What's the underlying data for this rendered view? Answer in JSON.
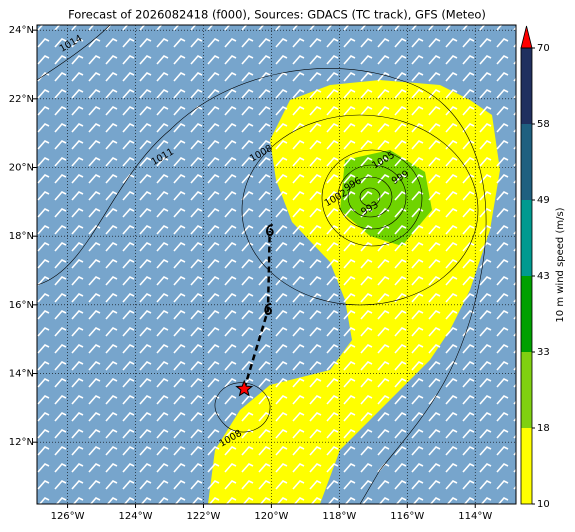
{
  "map": {
    "title": "Forecast of 2026082418 (f000), Sources: GDACS (TC track), GFS (Meteo)",
    "xlim": [
      -126.9,
      -112.8
    ],
    "ylim": [
      10.2,
      24.15
    ],
    "grid": true,
    "lon_ticks": [
      {
        "value": -126,
        "label": "126°W"
      },
      {
        "value": -124,
        "label": "124°W"
      },
      {
        "value": -122,
        "label": "122°W"
      },
      {
        "value": -120,
        "label": "120°W"
      },
      {
        "value": -118,
        "label": "118°W"
      },
      {
        "value": -116,
        "label": "116°W"
      },
      {
        "value": -114,
        "label": "114°W"
      }
    ],
    "lat_ticks": [
      {
        "value": 12,
        "label": "12°N"
      },
      {
        "value": 14,
        "label": "14°N"
      },
      {
        "value": 16,
        "label": "16°N"
      },
      {
        "value": 18,
        "label": "18°N"
      },
      {
        "value": 20,
        "label": "20°N"
      },
      {
        "value": 22,
        "label": "22°N"
      },
      {
        "value": 24,
        "label": "24°N"
      }
    ],
    "contour_labels": [
      {
        "level": 1014,
        "lon": -125.9,
        "lat": 23.6
      },
      {
        "level": 1011,
        "lon": -123.2,
        "lat": 20.3
      },
      {
        "level": 1008,
        "lon": -120.3,
        "lat": 20.4
      },
      {
        "level": 1005,
        "lon": -116.7,
        "lat": 20.2
      },
      {
        "level": 1002,
        "lon": -118.1,
        "lat": 19.1
      },
      {
        "level": 999,
        "lon": -116.2,
        "lat": 19.7
      },
      {
        "level": 996,
        "lon": -117.6,
        "lat": 19.5
      },
      {
        "level": 993,
        "lon": -117.1,
        "lat": 18.8
      },
      {
        "level": 1008,
        "lon": -121.2,
        "lat": 12.1
      }
    ],
    "track": {
      "lon": [
        -120.8,
        -120.1,
        -120.05
      ],
      "lat": [
        13.55,
        15.85,
        18.15
      ]
    }
  },
  "colorbar": {
    "label": "10 m wind speed (m/s)",
    "ticks": [
      10,
      18,
      33,
      43,
      49,
      58,
      70
    ],
    "colors": [
      "#ffff00",
      "#80d010",
      "#00a000",
      "#009a90",
      "#1f6080",
      "#20305f"
    ],
    "extend_color": "#ff0000"
  }
}
